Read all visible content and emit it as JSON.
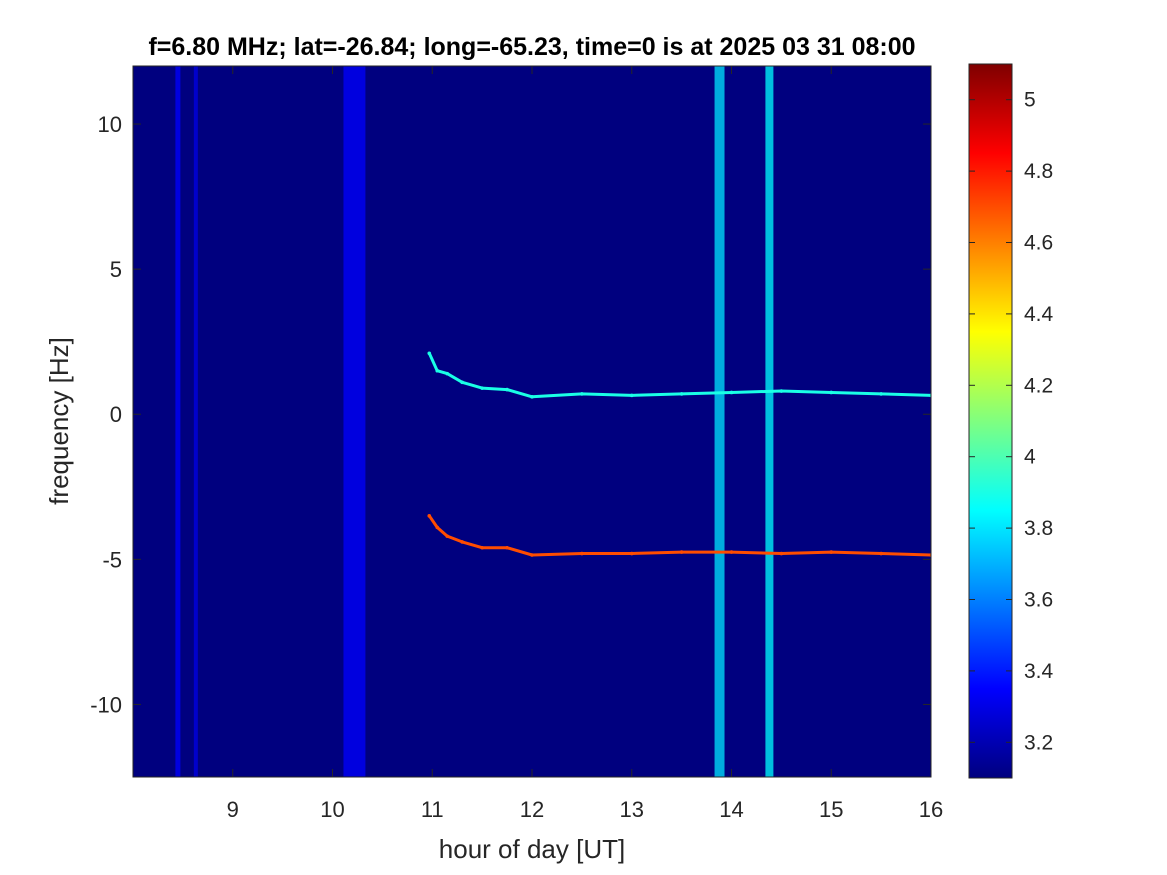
{
  "colors": {
    "background": "#00007f",
    "band_light": "#1f4fd6",
    "band_bright": "#3ec0e0",
    "trace_upper": "#7fe0ff",
    "trace_lower": "#ff9a30",
    "axis": "#262626"
  },
  "chart_data": {
    "type": "heatmap",
    "title": "f=6.80 MHz;  lat=-26.84; long=-65.23, time=0 is at 2025 03 31 08:00",
    "xlabel": "hour of day [UT]",
    "ylabel": "frequency [Hz]",
    "xlim": [
      8,
      16
    ],
    "ylim": [
      -12.5,
      12
    ],
    "x_ticks": [
      9,
      10,
      11,
      12,
      13,
      14,
      15,
      16
    ],
    "x_tick_labels": [
      "9",
      "10",
      "11",
      "12",
      "13",
      "14",
      "15",
      "16"
    ],
    "y_ticks": [
      10,
      5,
      0,
      -5,
      -10
    ],
    "y_tick_labels": [
      "10",
      "5",
      "0",
      "-5",
      "-10"
    ],
    "colorbar": {
      "colormap": "jet",
      "range": [
        3.1,
        5.1
      ],
      "ticks": [
        5,
        4.8,
        4.6,
        4.4,
        4.2,
        4,
        3.8,
        3.6,
        3.4,
        3.2
      ],
      "tick_labels": [
        "5",
        "4.8",
        "4.6",
        "4.4",
        "4.2",
        "4",
        "3.8",
        "3.6",
        "3.4",
        "3.2"
      ]
    },
    "vertical_bands": [
      {
        "x": 8.45,
        "width": 0.05,
        "level": 3.35
      },
      {
        "x": 8.63,
        "width": 0.04,
        "level": 3.3
      },
      {
        "x": 10.22,
        "width": 0.22,
        "level": 3.35
      },
      {
        "x": 13.88,
        "width": 0.1,
        "level": 3.8
      },
      {
        "x": 14.38,
        "width": 0.08,
        "level": 3.85
      }
    ],
    "series": [
      {
        "level": 3.9,
        "points": [
          [
            10.97,
            2.1
          ],
          [
            11.05,
            1.5
          ],
          [
            11.15,
            1.4
          ],
          [
            11.3,
            1.1
          ],
          [
            11.5,
            0.9
          ],
          [
            11.75,
            0.85
          ],
          [
            12.0,
            0.6
          ],
          [
            12.5,
            0.7
          ],
          [
            13.0,
            0.65
          ],
          [
            13.5,
            0.7
          ],
          [
            14.0,
            0.75
          ],
          [
            14.5,
            0.8
          ],
          [
            15.0,
            0.75
          ],
          [
            15.5,
            0.7
          ],
          [
            16.0,
            0.65
          ]
        ]
      },
      {
        "level": 4.7,
        "points": [
          [
            10.97,
            -3.5
          ],
          [
            11.05,
            -3.9
          ],
          [
            11.15,
            -4.2
          ],
          [
            11.3,
            -4.4
          ],
          [
            11.5,
            -4.6
          ],
          [
            11.75,
            -4.6
          ],
          [
            12.0,
            -4.85
          ],
          [
            12.5,
            -4.8
          ],
          [
            13.0,
            -4.8
          ],
          [
            13.5,
            -4.75
          ],
          [
            14.0,
            -4.75
          ],
          [
            14.5,
            -4.8
          ],
          [
            15.0,
            -4.75
          ],
          [
            15.5,
            -4.8
          ],
          [
            16.0,
            -4.85
          ]
        ]
      }
    ]
  }
}
